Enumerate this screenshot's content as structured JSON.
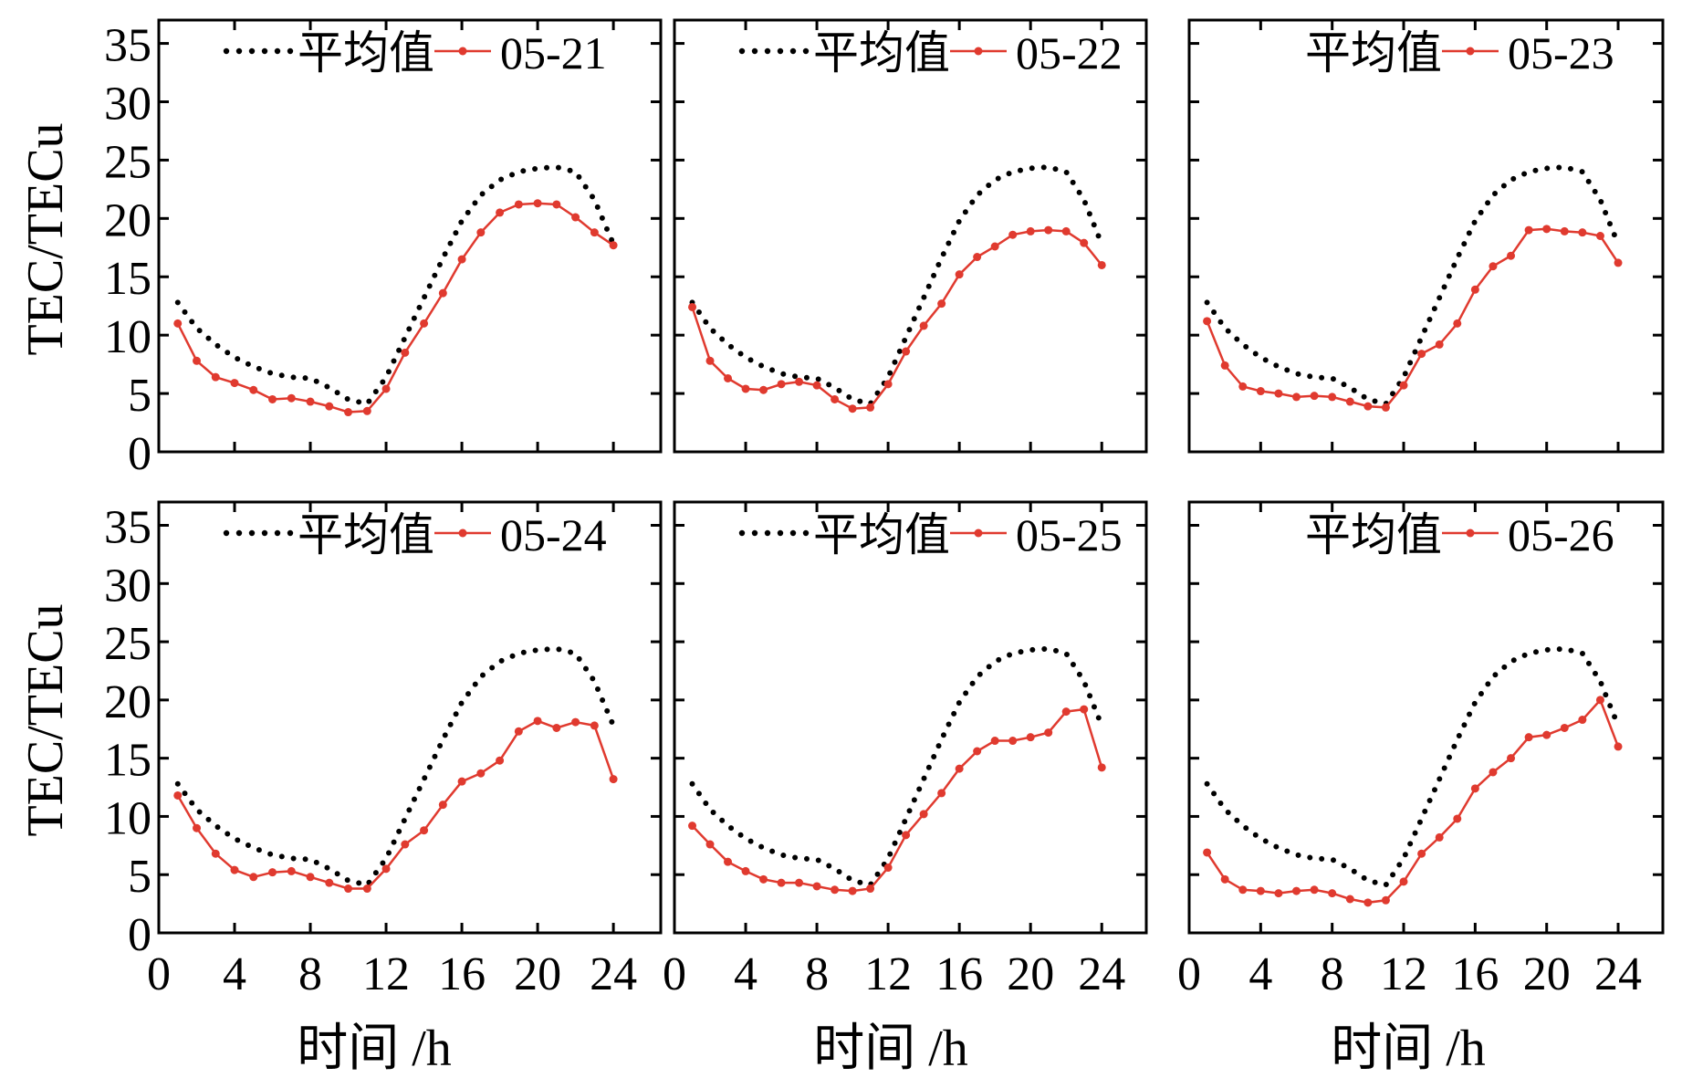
{
  "figure": {
    "ylabel": "TEC/TECu",
    "xlabel": "时间 /h",
    "legend_mean_label": "平均值"
  },
  "chart_data": [
    {
      "type": "line",
      "title": "",
      "xlabel": "时间 /h",
      "ylabel": "TEC/TECu",
      "xlim": [
        0,
        26.5
      ],
      "ylim": [
        0,
        37
      ],
      "xticks": [
        0,
        4,
        8,
        12,
        16,
        20,
        24
      ],
      "yticks": [
        0,
        5,
        10,
        15,
        20,
        25,
        30,
        35
      ],
      "legend": "top",
      "series": [
        {
          "name": "平均值",
          "style": "dotted",
          "color": "#000000",
          "x": [
            1,
            2,
            3,
            4,
            5,
            6,
            7,
            8,
            9,
            10,
            11,
            12,
            13,
            14,
            15,
            16,
            17,
            18,
            19,
            20,
            21,
            22,
            23,
            24
          ],
          "values": [
            12.8,
            10.6,
            9.2,
            8.1,
            7.3,
            6.7,
            6.4,
            6.3,
            5.5,
            4.5,
            4.1,
            6.4,
            9.8,
            13.2,
            16.6,
            19.8,
            22.0,
            23.3,
            24.0,
            24.3,
            24.4,
            24.0,
            21.6,
            17.8
          ]
        },
        {
          "name": "05-21",
          "style": "line-dot",
          "color": "#e03a2f",
          "x": [
            1,
            2,
            3,
            4,
            5,
            6,
            7,
            8,
            9,
            10,
            11,
            12,
            13,
            14,
            15,
            16,
            17,
            18,
            19,
            20,
            21,
            22,
            23,
            24
          ],
          "values": [
            11.0,
            7.8,
            6.4,
            5.9,
            5.3,
            4.5,
            4.6,
            4.3,
            3.9,
            3.4,
            3.5,
            5.4,
            8.5,
            11.0,
            13.6,
            16.5,
            18.8,
            20.5,
            21.2,
            21.3,
            21.2,
            20.1,
            18.8,
            17.7
          ]
        }
      ]
    },
    {
      "type": "line",
      "title": "",
      "xlabel": "时间 /h",
      "ylabel": "TEC/TECu",
      "xlim": [
        0,
        26.5
      ],
      "ylim": [
        0,
        37
      ],
      "xticks": [
        0,
        4,
        8,
        12,
        16,
        20,
        24
      ],
      "yticks": [
        0,
        5,
        10,
        15,
        20,
        25,
        30,
        35
      ],
      "legend": "top",
      "series": [
        {
          "name": "平均值",
          "style": "dotted",
          "color": "#000000",
          "x": [
            1,
            2,
            3,
            4,
            5,
            6,
            7,
            8,
            9,
            10,
            11,
            12,
            13,
            14,
            15,
            16,
            17,
            18,
            19,
            20,
            21,
            22,
            23,
            24
          ],
          "values": [
            12.8,
            10.6,
            9.2,
            8.1,
            7.3,
            6.7,
            6.4,
            6.3,
            5.5,
            4.5,
            4.1,
            6.4,
            9.8,
            13.2,
            16.6,
            19.8,
            22.0,
            23.3,
            24.0,
            24.3,
            24.4,
            24.0,
            21.6,
            17.8
          ]
        },
        {
          "name": "05-22",
          "style": "line-dot",
          "color": "#e03a2f",
          "x": [
            1,
            2,
            3,
            4,
            5,
            6,
            7,
            8,
            9,
            10,
            11,
            12,
            13,
            14,
            15,
            16,
            17,
            18,
            19,
            20,
            21,
            22,
            23,
            24
          ],
          "values": [
            12.4,
            7.8,
            6.3,
            5.4,
            5.3,
            5.8,
            6.0,
            5.7,
            4.5,
            3.7,
            3.8,
            5.8,
            8.6,
            10.8,
            12.7,
            15.2,
            16.7,
            17.6,
            18.6,
            18.9,
            19.0,
            18.9,
            17.9,
            16.0
          ]
        }
      ]
    },
    {
      "type": "line",
      "title": "",
      "xlabel": "时间 /h",
      "ylabel": "TEC/TECu",
      "xlim": [
        0,
        26.5
      ],
      "ylim": [
        0,
        37
      ],
      "xticks": [
        0,
        4,
        8,
        12,
        16,
        20,
        24
      ],
      "yticks": [
        0,
        5,
        10,
        15,
        20,
        25,
        30,
        35
      ],
      "legend": "top",
      "series": [
        {
          "name": "平均值",
          "style": "dotted",
          "color": "#000000",
          "x": [
            1,
            2,
            3,
            4,
            5,
            6,
            7,
            8,
            9,
            10,
            11,
            12,
            13,
            14,
            15,
            16,
            17,
            18,
            19,
            20,
            21,
            22,
            23,
            24
          ],
          "values": [
            12.8,
            10.6,
            9.2,
            8.1,
            7.3,
            6.7,
            6.4,
            6.3,
            5.5,
            4.5,
            4.1,
            6.4,
            9.8,
            13.2,
            16.6,
            19.8,
            22.0,
            23.3,
            24.0,
            24.3,
            24.4,
            24.0,
            21.6,
            17.8
          ]
        },
        {
          "name": "05-23",
          "style": "line-dot",
          "color": "#e03a2f",
          "x": [
            1,
            2,
            3,
            4,
            5,
            6,
            7,
            8,
            9,
            10,
            11,
            12,
            13,
            14,
            15,
            16,
            17,
            18,
            19,
            20,
            21,
            22,
            23,
            24
          ],
          "values": [
            11.2,
            7.4,
            5.6,
            5.2,
            5.0,
            4.7,
            4.8,
            4.7,
            4.3,
            3.9,
            3.8,
            5.7,
            8.4,
            9.2,
            11.0,
            13.9,
            15.9,
            16.8,
            19.0,
            19.1,
            18.9,
            18.8,
            18.5,
            16.2
          ]
        }
      ]
    },
    {
      "type": "line",
      "title": "",
      "xlabel": "时间 /h",
      "ylabel": "TEC/TECu",
      "xlim": [
        0,
        26.5
      ],
      "ylim": [
        0,
        37
      ],
      "xticks": [
        0,
        4,
        8,
        12,
        16,
        20,
        24
      ],
      "yticks": [
        0,
        5,
        10,
        15,
        20,
        25,
        30,
        35
      ],
      "legend": "top",
      "series": [
        {
          "name": "平均值",
          "style": "dotted",
          "color": "#000000",
          "x": [
            1,
            2,
            3,
            4,
            5,
            6,
            7,
            8,
            9,
            10,
            11,
            12,
            13,
            14,
            15,
            16,
            17,
            18,
            19,
            20,
            21,
            22,
            23,
            24
          ],
          "values": [
            12.8,
            10.6,
            9.2,
            8.1,
            7.3,
            6.7,
            6.4,
            6.3,
            5.5,
            4.5,
            4.1,
            6.4,
            9.8,
            13.2,
            16.6,
            19.8,
            22.0,
            23.3,
            24.0,
            24.3,
            24.4,
            24.0,
            21.6,
            17.8
          ]
        },
        {
          "name": "05-24",
          "style": "line-dot",
          "color": "#e03a2f",
          "x": [
            1,
            2,
            3,
            4,
            5,
            6,
            7,
            8,
            9,
            10,
            11,
            12,
            13,
            14,
            15,
            16,
            17,
            18,
            19,
            20,
            21,
            22,
            23,
            24
          ],
          "values": [
            11.8,
            9.0,
            6.8,
            5.4,
            4.8,
            5.2,
            5.3,
            4.8,
            4.3,
            3.8,
            3.8,
            5.5,
            7.6,
            8.8,
            11.0,
            13.0,
            13.7,
            14.8,
            17.3,
            18.2,
            17.6,
            18.1,
            17.8,
            13.2
          ]
        }
      ]
    },
    {
      "type": "line",
      "title": "",
      "xlabel": "时间 /h",
      "ylabel": "TEC/TECu",
      "xlim": [
        0,
        26.5
      ],
      "ylim": [
        0,
        37
      ],
      "xticks": [
        0,
        4,
        8,
        12,
        16,
        20,
        24
      ],
      "yticks": [
        0,
        5,
        10,
        15,
        20,
        25,
        30,
        35
      ],
      "legend": "top",
      "series": [
        {
          "name": "平均值",
          "style": "dotted",
          "color": "#000000",
          "x": [
            1,
            2,
            3,
            4,
            5,
            6,
            7,
            8,
            9,
            10,
            11,
            12,
            13,
            14,
            15,
            16,
            17,
            18,
            19,
            20,
            21,
            22,
            23,
            24
          ],
          "values": [
            12.8,
            10.6,
            9.2,
            8.1,
            7.3,
            6.7,
            6.4,
            6.3,
            5.5,
            4.5,
            4.1,
            6.4,
            9.8,
            13.2,
            16.6,
            19.8,
            22.0,
            23.3,
            24.0,
            24.3,
            24.4,
            24.0,
            21.6,
            17.8
          ]
        },
        {
          "name": "05-25",
          "style": "line-dot",
          "color": "#e03a2f",
          "x": [
            1,
            2,
            3,
            4,
            5,
            6,
            7,
            8,
            9,
            10,
            11,
            12,
            13,
            14,
            15,
            16,
            17,
            18,
            19,
            20,
            21,
            22,
            23,
            24
          ],
          "values": [
            9.2,
            7.6,
            6.1,
            5.3,
            4.6,
            4.3,
            4.3,
            4.0,
            3.7,
            3.6,
            3.8,
            5.6,
            8.4,
            10.2,
            12.0,
            14.1,
            15.6,
            16.5,
            16.5,
            16.8,
            17.2,
            19.0,
            19.2,
            14.2
          ]
        }
      ]
    },
    {
      "type": "line",
      "title": "",
      "xlabel": "时间 /h",
      "ylabel": "TEC/TECu",
      "xlim": [
        0,
        26.5
      ],
      "ylim": [
        0,
        37
      ],
      "xticks": [
        0,
        4,
        8,
        12,
        16,
        20,
        24
      ],
      "yticks": [
        0,
        5,
        10,
        15,
        20,
        25,
        30,
        35
      ],
      "legend": "top",
      "series": [
        {
          "name": "平均值",
          "style": "dotted",
          "color": "#000000",
          "x": [
            1,
            2,
            3,
            4,
            5,
            6,
            7,
            8,
            9,
            10,
            11,
            12,
            13,
            14,
            15,
            16,
            17,
            18,
            19,
            20,
            21,
            22,
            23,
            24
          ],
          "values": [
            12.8,
            10.6,
            9.2,
            8.1,
            7.3,
            6.7,
            6.4,
            6.3,
            5.5,
            4.5,
            4.1,
            6.4,
            9.8,
            13.2,
            16.6,
            19.8,
            22.0,
            23.3,
            24.0,
            24.3,
            24.4,
            24.0,
            21.6,
            17.8
          ]
        },
        {
          "name": "05-26",
          "style": "line-dot",
          "color": "#e03a2f",
          "x": [
            1,
            2,
            3,
            4,
            5,
            6,
            7,
            8,
            9,
            10,
            11,
            12,
            13,
            14,
            15,
            16,
            17,
            18,
            19,
            20,
            21,
            22,
            23,
            24
          ],
          "values": [
            6.9,
            4.6,
            3.7,
            3.6,
            3.4,
            3.6,
            3.7,
            3.4,
            2.9,
            2.6,
            2.8,
            4.4,
            6.8,
            8.2,
            9.8,
            12.4,
            13.8,
            15.0,
            16.8,
            17.0,
            17.6,
            18.3,
            20.0,
            16.0
          ]
        }
      ]
    }
  ]
}
